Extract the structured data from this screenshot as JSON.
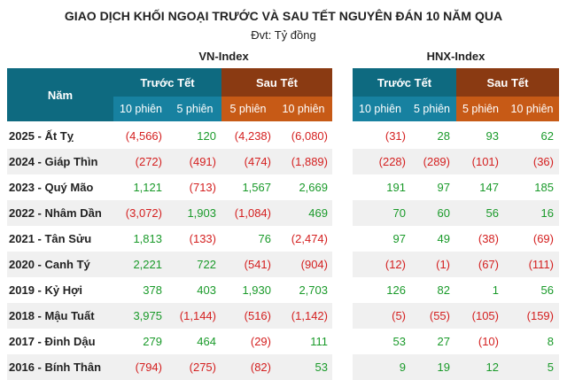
{
  "title": "GIAO DỊCH KHỐI NGOẠI TRƯỚC VÀ SAU TẾT NGUYÊN ĐÁN 10 NĂM QUA",
  "subtitle": "Đvt: Tỷ đồng",
  "colors": {
    "positive": "#1a9a2a",
    "negative": "#d42020",
    "before_header": "#0e6a80",
    "after_header": "#8a3a12"
  },
  "header": {
    "year_col": "Năm",
    "vn_index": "VN-Index",
    "hnx_index": "HNX-Index",
    "before_tet": "Trước Tết",
    "after_tet": "Sau Tết",
    "sessions_10": "10 phiên",
    "sessions_5": "5 phiên"
  },
  "rows": [
    {
      "year": "2025 - Ất Tỵ",
      "vn": [
        "(4,566)",
        "120",
        "(4,238)",
        "(6,080)"
      ],
      "hnx": [
        "(31)",
        "28",
        "93",
        "62"
      ]
    },
    {
      "year": "2024 - Giáp Thìn",
      "vn": [
        "(272)",
        "(491)",
        "(474)",
        "(1,889)"
      ],
      "hnx": [
        "(228)",
        "(289)",
        "(101)",
        "(36)"
      ]
    },
    {
      "year": "2023 - Quý Mão",
      "vn": [
        "1,121",
        "(713)",
        "1,567",
        "2,669"
      ],
      "hnx": [
        "191",
        "97",
        "147",
        "185"
      ]
    },
    {
      "year": "2022 - Nhâm Dần",
      "vn": [
        "(3,072)",
        "1,903",
        "(1,084)",
        "469"
      ],
      "hnx": [
        "70",
        "60",
        "56",
        "16"
      ]
    },
    {
      "year": "2021 - Tân Sửu",
      "vn": [
        "1,813",
        "(133)",
        "76",
        "(2,474)"
      ],
      "hnx": [
        "97",
        "49",
        "(38)",
        "(69)"
      ]
    },
    {
      "year": "2020 - Canh Tý",
      "vn": [
        "2,221",
        "722",
        "(541)",
        "(904)"
      ],
      "hnx": [
        "(12)",
        "(1)",
        "(67)",
        "(111)"
      ]
    },
    {
      "year": "2019 - Kỷ Hợi",
      "vn": [
        "378",
        "403",
        "1,930",
        "2,703"
      ],
      "hnx": [
        "126",
        "82",
        "1",
        "56"
      ]
    },
    {
      "year": "2018 - Mậu Tuất",
      "vn": [
        "3,975",
        "(1,144)",
        "(516)",
        "(1,142)"
      ],
      "hnx": [
        "(5)",
        "(55)",
        "(105)",
        "(159)"
      ]
    },
    {
      "year": "2017 - Đinh Dậu",
      "vn": [
        "279",
        "464",
        "(29)",
        "111"
      ],
      "hnx": [
        "53",
        "27",
        "(10)",
        "8"
      ]
    },
    {
      "year": "2016 - Bính Thân",
      "vn": [
        "(794)",
        "(275)",
        "(82)",
        "53"
      ],
      "hnx": [
        "9",
        "19",
        "12",
        "5"
      ]
    }
  ]
}
